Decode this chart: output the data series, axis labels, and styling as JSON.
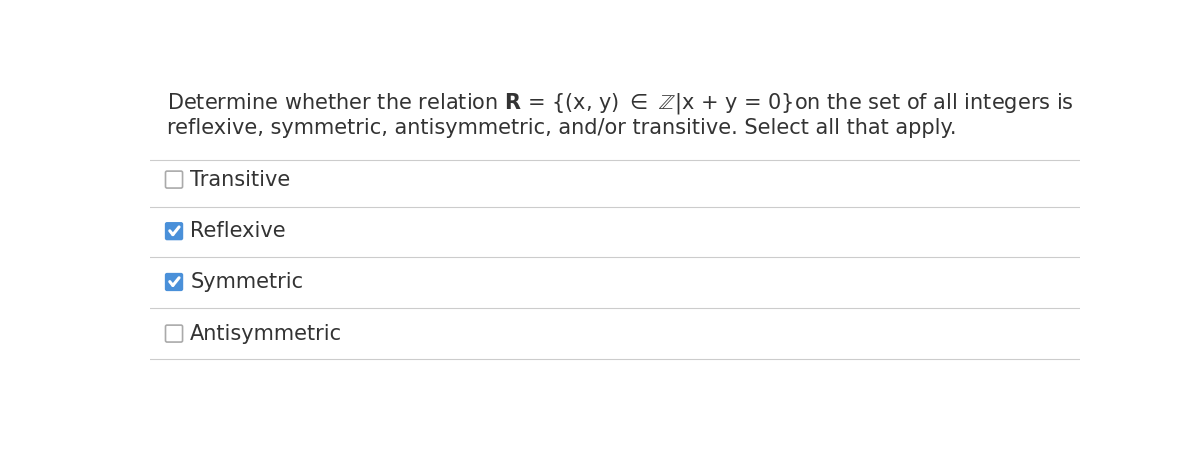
{
  "background_color": "#ffffff",
  "title_line1": "Determine whether the relation $\\mathbf{R}$ = {(x, y) $\\in$ $\\mathbb{Z}$|x + y = 0}on the set of all integers is",
  "title_line2": "reflexive, symmetric, antisymmetric, and/or transitive. Select all that apply.",
  "options": [
    {
      "label": "Transitive",
      "checked": false
    },
    {
      "label": "Reflexive",
      "checked": true
    },
    {
      "label": "Symmetric",
      "checked": true
    },
    {
      "label": "Antisymmetric",
      "checked": false
    }
  ],
  "text_color": "#333333",
  "checkbox_unchecked_color": "#ffffff",
  "checkbox_unchecked_border": "#aaaaaa",
  "checkbox_checked_color": "#4a90d9",
  "checkbox_checked_border": "#4a90d9",
  "check_color": "#ffffff",
  "divider_color": "#cccccc",
  "font_size_title": 15,
  "font_size_option": 15
}
